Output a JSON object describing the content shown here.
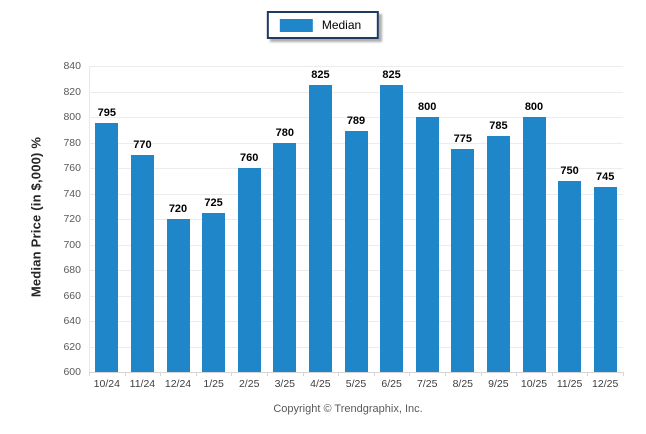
{
  "legend": {
    "label": "Median"
  },
  "footer": {
    "copyright": "Copyright © Trendgraphix, Inc."
  },
  "colors": {
    "bar": "#1f86c9",
    "legend_border": "#1e3a5f",
    "gridline": "#ececec",
    "baseline": "#d4d4d4",
    "y_tick_label": "#595959",
    "x_tick_label": "#3d3d3d",
    "value_label": "#000000"
  },
  "chart_data": {
    "type": "bar",
    "title": "",
    "xlabel": "",
    "ylabel": "Median Price (in $,000) %",
    "categories": [
      "10/24",
      "11/24",
      "12/24",
      "1/25",
      "2/25",
      "3/25",
      "4/25",
      "5/25",
      "6/25",
      "7/25",
      "8/25",
      "9/25",
      "10/25",
      "11/25",
      "12/25"
    ],
    "series": [
      {
        "name": "Median",
        "values": [
          795,
          770,
          720,
          725,
          760,
          780,
          825,
          789,
          825,
          800,
          775,
          785,
          800,
          750,
          745
        ]
      }
    ],
    "ylim": [
      600,
      840
    ],
    "ytick_step": 20,
    "yticks": [
      600,
      620,
      640,
      660,
      680,
      700,
      720,
      740,
      760,
      780,
      800,
      820,
      840
    ],
    "grid": true,
    "value_labels": true,
    "legend_position": "top-center",
    "bar_color": "#1f86c9"
  }
}
